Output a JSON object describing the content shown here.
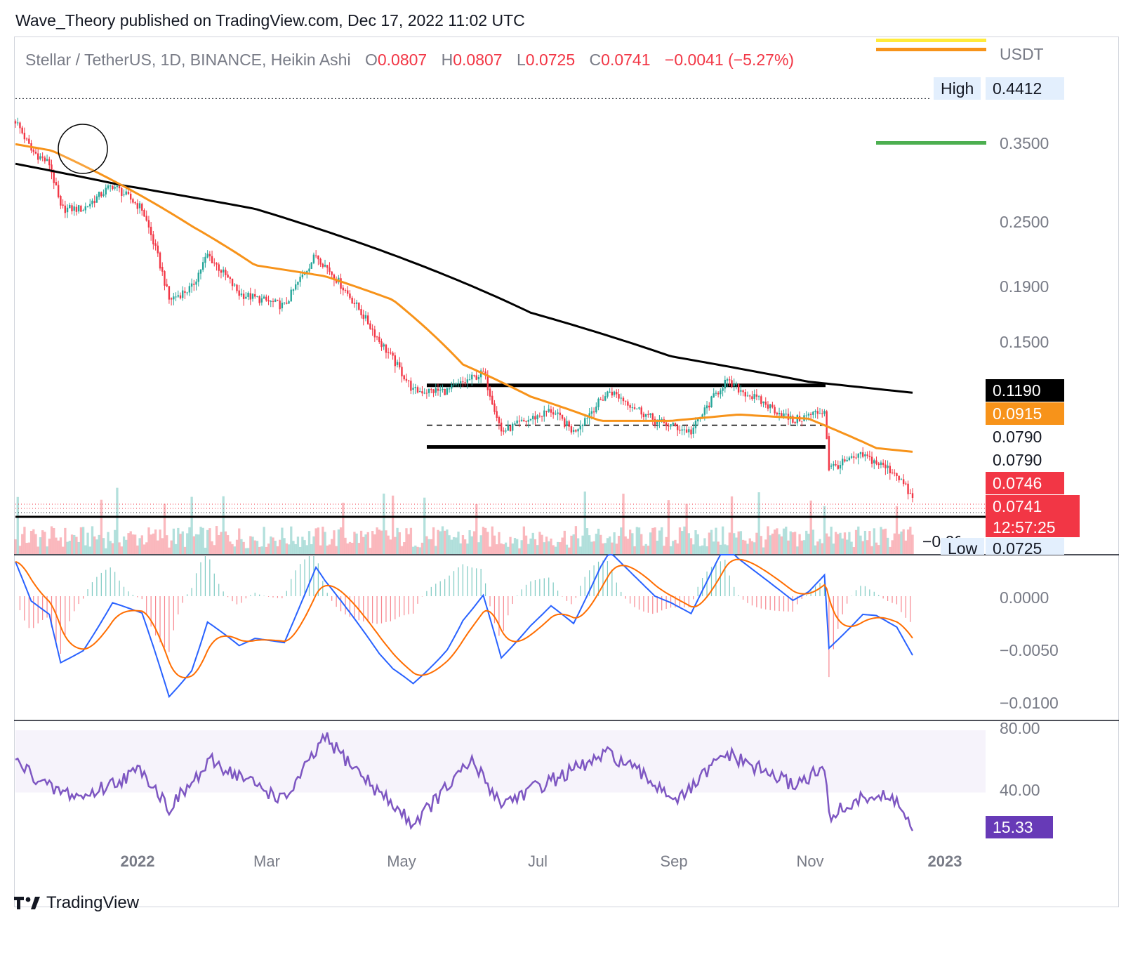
{
  "header": "Wave_Theory published on TradingView.com, Dec 17, 2022 11:02 UTC",
  "legend": {
    "symbol": "Stellar / TetherUS, 1D, BINANCE, Heikin Ashi",
    "open_key": "O",
    "open": "0.0807",
    "high_key": "H",
    "high": "0.0807",
    "low_key": "L",
    "low": "0.0725",
    "close_key": "C",
    "close": "0.0741",
    "change": "−0.0041 (−5.27%)"
  },
  "currency": "USDT",
  "price_scale": [
    "0.3500",
    "0.2500",
    "0.1900",
    "0.1500"
  ],
  "tags": {
    "high_label": "High",
    "high_value": "0.4412",
    "ma200": "0.1190",
    "ma50": "0.0915",
    "level1": "0.0790",
    "level2": "0.0790",
    "level3": "0.0746",
    "last_price": "0.0741",
    "countdown": "12:57:25",
    "low_label": "Low",
    "low_value": "0.0725",
    "volume_clip": "−0.0000"
  },
  "macd_scale": [
    "0.0000",
    "−0.0050",
    "−0.0100"
  ],
  "rsi_scale": [
    "80.00",
    "40.00"
  ],
  "rsi_value": "15.33",
  "x_ticks": [
    "2022",
    "Mar",
    "May",
    "Jul",
    "Sep",
    "Nov",
    "2023"
  ],
  "footer": {
    "brand": "TradingView"
  },
  "colors": {
    "bull": "#26a69a",
    "bear": "#f23645",
    "ma50": "#f7931a",
    "ma200": "#000000",
    "macd": "#2962ff",
    "signal": "#ff6d00",
    "rsi": "#7e57c2",
    "yellow": "#ffeb3b",
    "green": "#4caf50"
  },
  "chart_data": {
    "type": "candlestick",
    "title": "Stellar / TetherUS, 1D, BINANCE, Heikin Ashi",
    "ylabel": "USDT",
    "y_scale": "log",
    "ylim": [
      0.072,
      0.46
    ],
    "x_range": [
      "2021-11-15",
      "2022-12-17"
    ],
    "price_path": [
      {
        "date": "2021-11-15",
        "price": 0.4
      },
      {
        "date": "2021-11-22",
        "price": 0.35
      },
      {
        "date": "2021-11-30",
        "price": 0.33
      },
      {
        "date": "2021-12-05",
        "price": 0.27
      },
      {
        "date": "2021-12-15",
        "price": 0.27
      },
      {
        "date": "2021-12-28",
        "price": 0.3
      },
      {
        "date": "2022-01-10",
        "price": 0.27
      },
      {
        "date": "2022-01-22",
        "price": 0.18
      },
      {
        "date": "2022-02-01",
        "price": 0.19
      },
      {
        "date": "2022-02-08",
        "price": 0.22
      },
      {
        "date": "2022-02-22",
        "price": 0.185
      },
      {
        "date": "2022-03-14",
        "price": 0.175
      },
      {
        "date": "2022-03-28",
        "price": 0.22
      },
      {
        "date": "2022-04-05",
        "price": 0.2
      },
      {
        "date": "2022-04-25",
        "price": 0.15
      },
      {
        "date": "2022-05-10",
        "price": 0.12
      },
      {
        "date": "2022-05-25",
        "price": 0.12
      },
      {
        "date": "2022-06-10",
        "price": 0.13
      },
      {
        "date": "2022-06-18",
        "price": 0.1
      },
      {
        "date": "2022-07-10",
        "price": 0.11
      },
      {
        "date": "2022-07-20",
        "price": 0.1
      },
      {
        "date": "2022-08-05",
        "price": 0.12
      },
      {
        "date": "2022-08-25",
        "price": 0.105
      },
      {
        "date": "2022-09-10",
        "price": 0.1
      },
      {
        "date": "2022-09-25",
        "price": 0.125
      },
      {
        "date": "2022-10-10",
        "price": 0.115
      },
      {
        "date": "2022-10-25",
        "price": 0.105
      },
      {
        "date": "2022-11-08",
        "price": 0.11
      },
      {
        "date": "2022-11-10",
        "price": 0.085
      },
      {
        "date": "2022-11-25",
        "price": 0.09
      },
      {
        "date": "2022-12-10",
        "price": 0.083
      },
      {
        "date": "2022-12-17",
        "price": 0.0741
      }
    ],
    "ma50": [
      {
        "date": "2021-11-15",
        "value": 0.36
      },
      {
        "date": "2021-12-01",
        "value": 0.35
      },
      {
        "date": "2022-01-01",
        "value": 0.3
      },
      {
        "date": "2022-02-01",
        "value": 0.25
      },
      {
        "date": "2022-03-01",
        "value": 0.21
      },
      {
        "date": "2022-04-01",
        "value": 0.2
      },
      {
        "date": "2022-05-01",
        "value": 0.18
      },
      {
        "date": "2022-06-01",
        "value": 0.135
      },
      {
        "date": "2022-07-01",
        "value": 0.117
      },
      {
        "date": "2022-08-01",
        "value": 0.105
      },
      {
        "date": "2022-09-01",
        "value": 0.105
      },
      {
        "date": "2022-10-01",
        "value": 0.108
      },
      {
        "date": "2022-11-01",
        "value": 0.106
      },
      {
        "date": "2022-12-01",
        "value": 0.093
      },
      {
        "date": "2022-12-17",
        "value": 0.0915
      }
    ],
    "ma200": [
      {
        "date": "2021-11-15",
        "value": 0.33
      },
      {
        "date": "2022-01-01",
        "value": 0.3
      },
      {
        "date": "2022-03-01",
        "value": 0.27
      },
      {
        "date": "2022-05-01",
        "value": 0.22
      },
      {
        "date": "2022-07-01",
        "value": 0.17
      },
      {
        "date": "2022-09-01",
        "value": 0.14
      },
      {
        "date": "2022-11-01",
        "value": 0.125
      },
      {
        "date": "2022-12-17",
        "value": 0.119
      }
    ],
    "levels": [
      {
        "name": "range-top",
        "value": 0.123
      },
      {
        "name": "range-mid",
        "value": 0.103
      },
      {
        "name": "range-bottom",
        "value": 0.0935
      },
      {
        "name": "support",
        "value": 0.0725
      }
    ],
    "high": 0.4412,
    "low": 0.0725,
    "last": 0.0741,
    "macd_ylim": [
      -0.012,
      0.004
    ],
    "rsi": {
      "ylim": [
        0,
        100
      ],
      "band": [
        40,
        80
      ],
      "last": 15.33,
      "path": [
        {
          "date": "2021-11-15",
          "value": 60
        },
        {
          "date": "2021-12-01",
          "value": 42
        },
        {
          "date": "2021-12-15",
          "value": 37
        },
        {
          "date": "2022-01-10",
          "value": 55
        },
        {
          "date": "2022-01-22",
          "value": 30
        },
        {
          "date": "2022-02-10",
          "value": 60
        },
        {
          "date": "2022-03-14",
          "value": 35
        },
        {
          "date": "2022-04-01",
          "value": 75
        },
        {
          "date": "2022-04-25",
          "value": 40
        },
        {
          "date": "2022-05-10",
          "value": 20
        },
        {
          "date": "2022-06-05",
          "value": 60
        },
        {
          "date": "2022-06-18",
          "value": 33
        },
        {
          "date": "2022-08-05",
          "value": 65
        },
        {
          "date": "2022-09-05",
          "value": 35
        },
        {
          "date": "2022-09-25",
          "value": 65
        },
        {
          "date": "2022-10-25",
          "value": 45
        },
        {
          "date": "2022-11-08",
          "value": 55
        },
        {
          "date": "2022-11-10",
          "value": 25
        },
        {
          "date": "2022-11-28",
          "value": 38
        },
        {
          "date": "2022-12-10",
          "value": 35
        },
        {
          "date": "2022-12-17",
          "value": 15.33
        }
      ]
    }
  }
}
